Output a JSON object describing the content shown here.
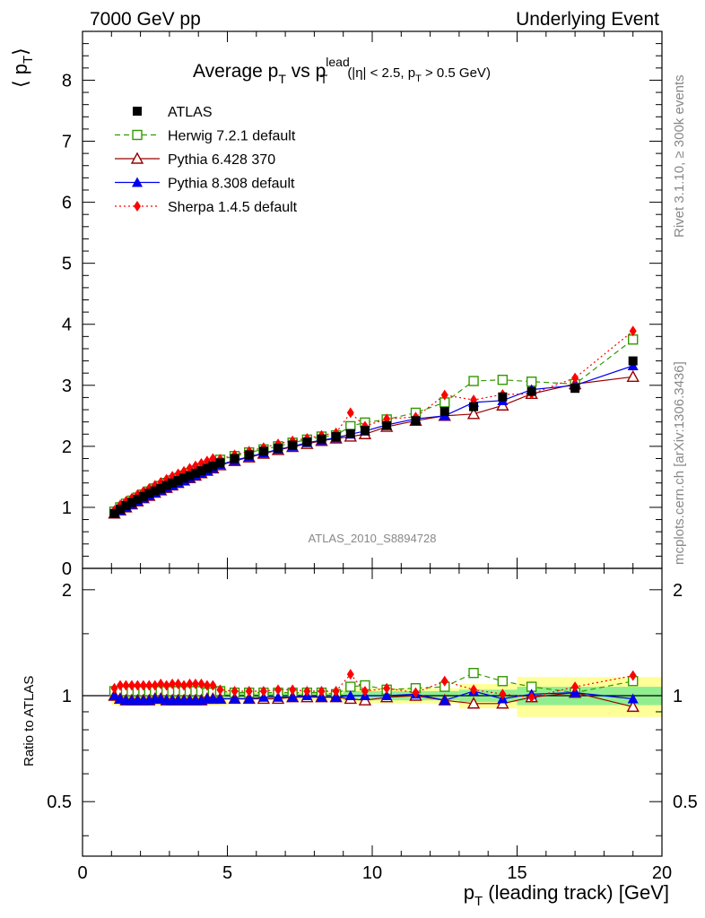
{
  "header": {
    "left": "7000 GeV pp",
    "right": "Underlying Event"
  },
  "side_text": {
    "rivet": "Rivet 3.1.10, ≥ 300k events",
    "mcplots": "mcplots.cern.ch [arXiv:1306.3436]"
  },
  "chart_data": [
    {
      "type": "scatter",
      "panel": "main",
      "title": {
        "main": "Average p",
        "sub1": "T",
        "vs": " vs p",
        "sup": "lead",
        "sub2": "T",
        "cuts": "(|η| < 2.5, p",
        "cuts_sub": "T",
        "cuts_end": " > 0.5 GeV)"
      },
      "ylabel": {
        "open": "⟨ p",
        "sub": "T",
        "close": "⟩"
      },
      "analysis_label": "ATLAS_2010_S8894728",
      "xlim": [
        0,
        20
      ],
      "ylim": [
        0,
        8.8
      ],
      "x_ticks": [
        "0",
        "5",
        "10",
        "15",
        "20"
      ],
      "y_ticks": [
        "0",
        "1",
        "2",
        "3",
        "4",
        "5",
        "6",
        "7",
        "8"
      ],
      "x": [
        1.1,
        1.3,
        1.5,
        1.7,
        1.9,
        2.1,
        2.3,
        2.5,
        2.7,
        2.9,
        3.1,
        3.3,
        3.5,
        3.7,
        3.9,
        4.1,
        4.3,
        4.5,
        4.75,
        5.25,
        5.75,
        6.25,
        6.75,
        7.25,
        7.75,
        8.25,
        8.75,
        9.25,
        9.75,
        10.5,
        11.5,
        12.5,
        13.5,
        14.5,
        15.5,
        17.0,
        19.0
      ],
      "series": [
        {
          "name": "ATLAS",
          "color": "#000000",
          "marker": "square",
          "values": [
            0.9,
            0.97,
            1.03,
            1.08,
            1.13,
            1.18,
            1.23,
            1.27,
            1.31,
            1.36,
            1.4,
            1.44,
            1.48,
            1.52,
            1.56,
            1.6,
            1.64,
            1.68,
            1.73,
            1.8,
            1.86,
            1.92,
            1.97,
            2.02,
            2.07,
            2.12,
            2.16,
            2.21,
            2.26,
            2.34,
            2.42,
            2.57,
            2.65,
            2.81,
            2.9,
            2.95,
            3.4
          ]
        },
        {
          "name": "Herwig 7.2.1 default",
          "color": "#339900",
          "marker": "open-square",
          "dash": "6,4",
          "values": [
            0.93,
            1.0,
            1.06,
            1.11,
            1.16,
            1.21,
            1.26,
            1.31,
            1.35,
            1.4,
            1.44,
            1.48,
            1.52,
            1.56,
            1.6,
            1.64,
            1.67,
            1.71,
            1.78,
            1.84,
            1.9,
            1.95,
            2.0,
            2.06,
            2.11,
            2.16,
            2.18,
            2.33,
            2.39,
            2.44,
            2.55,
            2.72,
            3.07,
            3.09,
            3.06,
            3.02,
            3.75
          ]
        },
        {
          "name": "Pythia 6.428 370",
          "color": "#990000",
          "marker": "open-triangle",
          "dash": "",
          "values": [
            0.9,
            0.95,
            1.0,
            1.05,
            1.1,
            1.15,
            1.19,
            1.24,
            1.28,
            1.32,
            1.36,
            1.4,
            1.44,
            1.48,
            1.52,
            1.56,
            1.6,
            1.64,
            1.69,
            1.76,
            1.82,
            1.88,
            1.94,
            1.99,
            2.04,
            2.09,
            2.13,
            2.16,
            2.2,
            2.32,
            2.42,
            2.5,
            2.53,
            2.67,
            2.86,
            3.02,
            3.14
          ]
        },
        {
          "name": "Pythia 8.308 default",
          "color": "#0000ee",
          "marker": "triangle",
          "dash": "",
          "values": [
            0.9,
            0.95,
            1.0,
            1.05,
            1.1,
            1.15,
            1.19,
            1.24,
            1.28,
            1.32,
            1.36,
            1.4,
            1.44,
            1.48,
            1.52,
            1.56,
            1.6,
            1.64,
            1.7,
            1.77,
            1.83,
            1.89,
            1.95,
            2.0,
            2.06,
            2.1,
            2.14,
            2.2,
            2.25,
            2.35,
            2.45,
            2.5,
            2.72,
            2.75,
            2.93,
            3.0,
            3.32
          ]
        },
        {
          "name": "Sherpa 1.4.5 default",
          "color": "#ff0000",
          "marker": "diamond",
          "dash": "2,3",
          "values": [
            0.95,
            1.04,
            1.1,
            1.15,
            1.21,
            1.26,
            1.31,
            1.36,
            1.41,
            1.46,
            1.51,
            1.55,
            1.59,
            1.64,
            1.68,
            1.72,
            1.76,
            1.8,
            1.79,
            1.86,
            1.92,
            1.98,
            2.04,
            2.09,
            2.13,
            2.18,
            2.22,
            2.55,
            2.33,
            2.45,
            2.48,
            2.84,
            2.76,
            2.85,
            2.86,
            3.12,
            3.89
          ]
        }
      ],
      "legend_position": "top-left"
    },
    {
      "type": "scatter",
      "panel": "ratio",
      "ylabel": "Ratio to ATLAS",
      "xlabel": {
        "main": "p",
        "sub": "T",
        "rest": " (leading track) [GeV]"
      },
      "xlim": [
        0,
        20
      ],
      "ylim": [
        0.35,
        2.3
      ],
      "scale": "log",
      "y_ticks": [
        "0.5",
        "1",
        "2"
      ],
      "reference": 1.0,
      "uncertainty_bands": [
        {
          "x_from": 1.0,
          "x_to": 5.0,
          "inner": 0.02,
          "outer": 0.06
        },
        {
          "x_from": 5.0,
          "x_to": 9.0,
          "inner": 0.015,
          "outer": 0.03
        },
        {
          "x_from": 9.0,
          "x_to": 13.0,
          "inner": 0.03,
          "outer": 0.05
        },
        {
          "x_from": 13.0,
          "x_to": 15.0,
          "inner": 0.04,
          "outer": 0.08
        },
        {
          "x_from": 15.0,
          "x_to": 20.0,
          "inner": 0.06,
          "outer": 0.13
        }
      ],
      "band_colors": {
        "inner": "#90ee90",
        "outer": "#ffff99"
      },
      "series": [
        {
          "name": "Herwig 7.2.1 default",
          "values": [
            1.03,
            1.03,
            1.03,
            1.03,
            1.03,
            1.03,
            1.03,
            1.03,
            1.03,
            1.03,
            1.03,
            1.03,
            1.03,
            1.03,
            1.03,
            1.03,
            1.02,
            1.02,
            1.03,
            1.02,
            1.02,
            1.02,
            1.02,
            1.02,
            1.02,
            1.02,
            1.01,
            1.06,
            1.07,
            1.04,
            1.05,
            1.06,
            1.16,
            1.1,
            1.06,
            1.02,
            1.1
          ]
        },
        {
          "name": "Pythia 6.428 370",
          "values": [
            1.0,
            0.98,
            0.97,
            0.97,
            0.97,
            0.97,
            0.97,
            0.98,
            0.98,
            0.97,
            0.97,
            0.97,
            0.97,
            0.97,
            0.97,
            0.97,
            0.98,
            0.98,
            0.98,
            0.98,
            0.98,
            0.98,
            0.98,
            0.99,
            0.99,
            0.99,
            0.99,
            0.98,
            0.97,
            0.99,
            1.0,
            0.97,
            0.95,
            0.95,
            0.99,
            1.02,
            0.93
          ]
        },
        {
          "name": "Pythia 8.308 default",
          "values": [
            1.0,
            0.98,
            0.97,
            0.97,
            0.97,
            0.97,
            0.97,
            0.98,
            0.98,
            0.97,
            0.97,
            0.97,
            0.97,
            0.97,
            0.97,
            0.97,
            0.98,
            0.98,
            0.98,
            0.98,
            0.98,
            0.99,
            0.99,
            0.99,
            1.0,
            0.99,
            0.99,
            1.0,
            1.0,
            1.0,
            1.01,
            0.97,
            1.03,
            0.98,
            1.01,
            1.02,
            0.98
          ]
        },
        {
          "name": "Sherpa 1.4.5 default",
          "values": [
            1.05,
            1.07,
            1.07,
            1.07,
            1.07,
            1.07,
            1.07,
            1.07,
            1.08,
            1.07,
            1.08,
            1.08,
            1.07,
            1.08,
            1.08,
            1.08,
            1.07,
            1.07,
            1.04,
            1.03,
            1.03,
            1.03,
            1.04,
            1.04,
            1.03,
            1.03,
            1.03,
            1.15,
            1.03,
            1.05,
            1.02,
            1.1,
            1.04,
            1.01,
            0.99,
            1.06,
            1.14
          ]
        }
      ]
    }
  ]
}
